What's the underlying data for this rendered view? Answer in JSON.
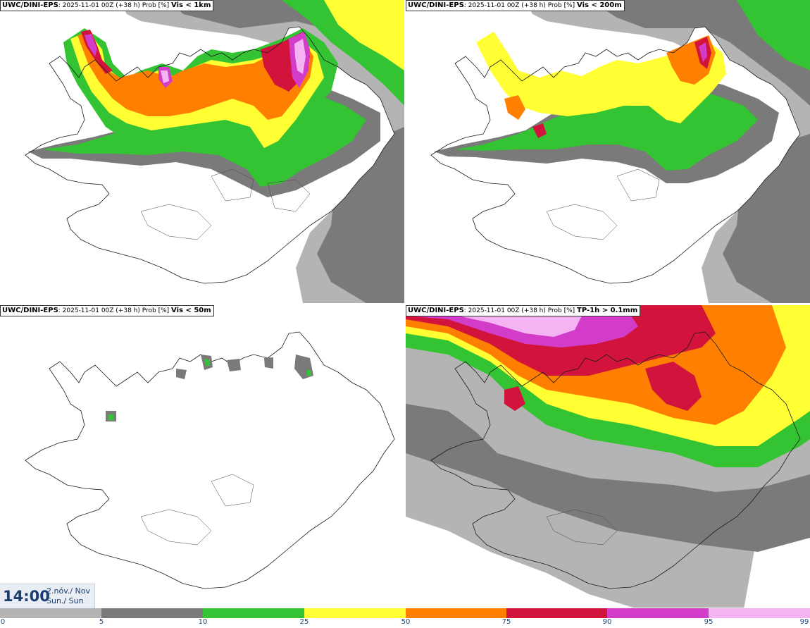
{
  "panels": [
    {
      "model": "UWC/DINI-EPS",
      "run": ": 2025-11-01 00Z (+38 h) Prob [%]",
      "variable": "Vis < 1km"
    },
    {
      "model": "UWC/DINI-EPS",
      "run": ": 2025-11-01 00Z (+38 h) Prob [%]",
      "variable": "Vis < 200m"
    },
    {
      "model": "UWC/DINI-EPS",
      "run": ": 2025-11-01 00Z (+38 h) Prob [%]",
      "variable": "Vis < 50m"
    },
    {
      "model": "UWC/DINI-EPS",
      "run": ": 2025-11-01 00Z (+38 h) Prob [%]",
      "variable": "TP-1h > 0.1mm"
    }
  ],
  "valid_time": {
    "time": "14:00",
    "date_line1": "2.nóv./ Nov",
    "date_line2": "Sun./ Sun"
  },
  "colorbar": {
    "labels": [
      "0",
      "5",
      "10",
      "25",
      "50",
      "75",
      "90",
      "95",
      "99"
    ],
    "colors": [
      "#ffffff",
      "#b4b4b4",
      "#7a7a7a",
      "#33c333",
      "#ffff33",
      "#ff7f00",
      "#d2143c",
      "#d23cc8",
      "#f4b4f4"
    ]
  },
  "legend_colors": {
    "p5": "#b4b4b4",
    "p10": "#7a7a7a",
    "p25": "#33c333",
    "p50": "#ffff33",
    "p75": "#ff7f00",
    "p90": "#d2143c",
    "p95": "#d23cc8",
    "p99": "#f4b4f4"
  }
}
